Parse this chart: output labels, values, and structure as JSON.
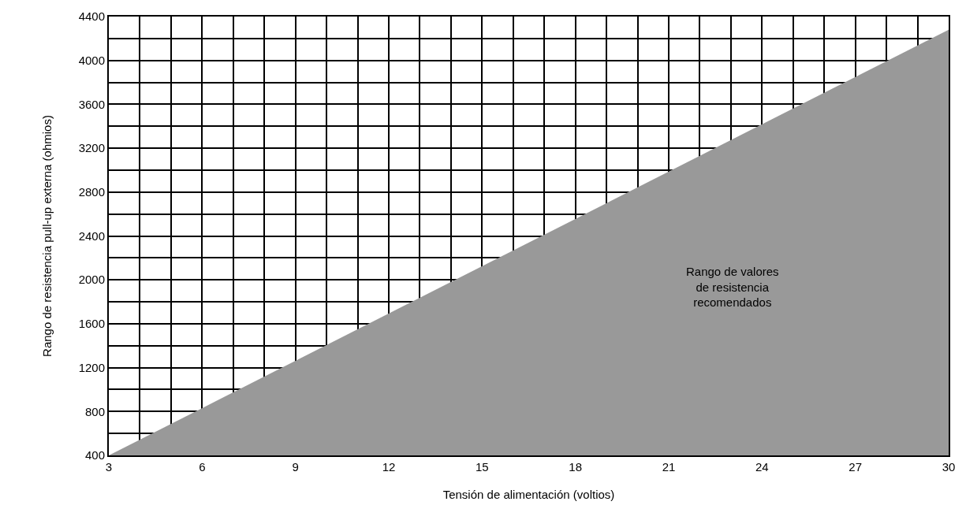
{
  "chart_data": {
    "type": "area",
    "xlabel": "Tensión de alimentación (voltios)",
    "ylabel": "Rango de resistencia pull-up externa (ohmios)",
    "x": [
      3,
      30
    ],
    "series": [
      {
        "color": "#999999",
        "values": [
          400,
          4280
        ]
      }
    ],
    "xlim": [
      3,
      30
    ],
    "xticks": [
      3,
      {
        "value": 4,
        "label": null
      },
      {
        "value": 5,
        "label": null
      },
      6,
      {
        "value": 7,
        "label": null
      },
      {
        "value": 8,
        "label": null
      },
      9,
      {
        "value": 10,
        "label": null
      },
      {
        "value": 11,
        "label": null
      },
      12,
      {
        "value": 13,
        "label": null
      },
      {
        "value": 14,
        "label": null
      },
      15,
      {
        "value": 16,
        "label": null
      },
      {
        "value": 17,
        "label": null
      },
      18,
      {
        "value": 19,
        "label": null
      },
      {
        "value": 20,
        "label": null
      },
      21,
      {
        "value": 22,
        "label": null
      },
      {
        "value": 23,
        "label": null
      },
      24,
      {
        "value": 25,
        "label": null
      },
      {
        "value": 26,
        "label": null
      },
      27,
      {
        "value": 28,
        "label": null
      },
      {
        "value": 29,
        "label": null
      },
      30
    ],
    "ylim": [
      400,
      4400
    ],
    "yticks": [
      400,
      {
        "value": 600,
        "label": null
      },
      800,
      {
        "value": 1000,
        "label": null
      },
      1200,
      {
        "value": 1400,
        "label": null
      },
      1600,
      {
        "value": 1800,
        "label": null
      },
      2000,
      {
        "value": 2200,
        "label": null
      },
      2400,
      {
        "value": 2600,
        "label": null
      },
      2800,
      {
        "value": 3000,
        "label": null
      },
      3200,
      {
        "value": 3400,
        "label": null
      },
      3600,
      {
        "value": 3800,
        "label": null
      },
      4000,
      {
        "value": 4200,
        "label": null
      },
      4400
    ],
    "grid": true,
    "annotations": [
      "Rango de valores\nde resistencia\nrecomendados"
    ]
  }
}
